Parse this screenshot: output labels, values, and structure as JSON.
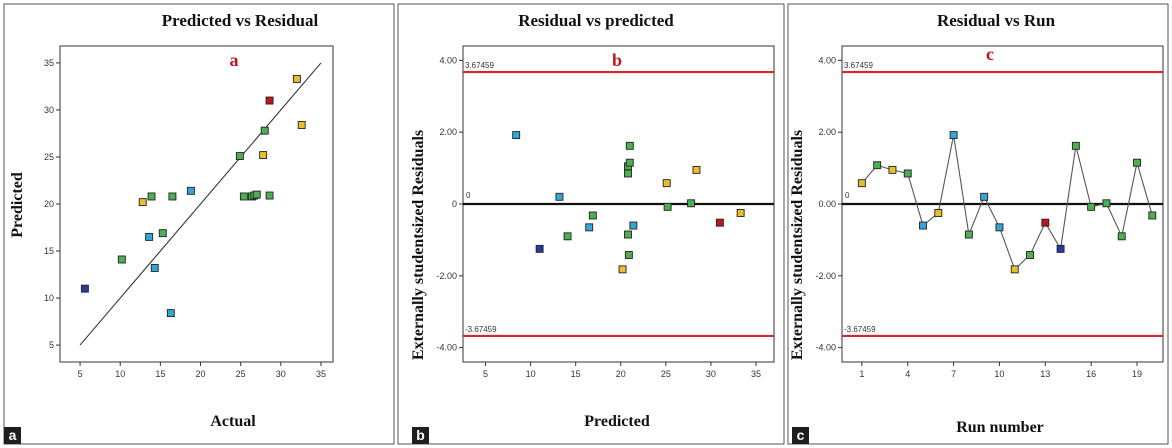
{
  "colors": {
    "green": "#4caf50",
    "yellow": "#e8bd2f",
    "blue": "#33a6d6",
    "navy": "#2b3a9a",
    "red": "#c0161b",
    "limit": "#d9252a",
    "accent_letter": "#c0161b"
  },
  "chart_data": [
    {
      "id": "a",
      "type": "scatter",
      "title": "Predicted vs Residual",
      "xlabel": "Actual",
      "ylabel": "Predicted",
      "panel_letter": "a",
      "badge": "a",
      "xlim": [
        2.5,
        36.5
      ],
      "ylim": [
        3.2,
        36.8
      ],
      "xticks": [
        5,
        10,
        15,
        20,
        25,
        30,
        35
      ],
      "yticks": [
        5,
        10,
        15,
        20,
        25,
        30,
        35
      ],
      "xtick_labels": [
        "5",
        "10",
        "15",
        "20",
        "25",
        "30",
        "35"
      ],
      "ytick_labels": [
        "5",
        "10",
        "15",
        "20",
        "25",
        "30",
        "35"
      ],
      "diagonal": [
        [
          5,
          5
        ],
        [
          35,
          35
        ]
      ],
      "points": [
        {
          "x": 5.6,
          "y": 11.0,
          "c": "navy"
        },
        {
          "x": 10.2,
          "y": 14.1,
          "c": "green"
        },
        {
          "x": 12.8,
          "y": 20.2,
          "c": "yellow"
        },
        {
          "x": 13.6,
          "y": 16.5,
          "c": "blue"
        },
        {
          "x": 13.9,
          "y": 20.8,
          "c": "green"
        },
        {
          "x": 14.3,
          "y": 13.2,
          "c": "blue"
        },
        {
          "x": 15.3,
          "y": 16.9,
          "c": "green"
        },
        {
          "x": 16.3,
          "y": 8.4,
          "c": "blue"
        },
        {
          "x": 16.5,
          "y": 20.8,
          "c": "green"
        },
        {
          "x": 18.8,
          "y": 21.4,
          "c": "blue"
        },
        {
          "x": 24.9,
          "y": 25.1,
          "c": "green"
        },
        {
          "x": 25.4,
          "y": 20.8,
          "c": "green"
        },
        {
          "x": 26.4,
          "y": 20.8,
          "c": "green"
        },
        {
          "x": 26.7,
          "y": 20.9,
          "c": "green"
        },
        {
          "x": 27.0,
          "y": 21.0,
          "c": "green"
        },
        {
          "x": 27.8,
          "y": 25.2,
          "c": "yellow"
        },
        {
          "x": 28.0,
          "y": 27.8,
          "c": "green"
        },
        {
          "x": 28.6,
          "y": 20.9,
          "c": "green"
        },
        {
          "x": 28.6,
          "y": 31.0,
          "c": "red"
        },
        {
          "x": 32.0,
          "y": 33.3,
          "c": "yellow"
        },
        {
          "x": 32.6,
          "y": 28.4,
          "c": "yellow"
        }
      ]
    },
    {
      "id": "b",
      "type": "scatter",
      "title": "Residual vs predicted",
      "xlabel": "Predicted",
      "ylabel": "Externally studentsized Residuals",
      "panel_letter": "b",
      "badge": "b",
      "xlim": [
        2.5,
        37
      ],
      "ylim": [
        -4.4,
        4.4
      ],
      "xticks": [
        5,
        10,
        15,
        20,
        25,
        30,
        35
      ],
      "yticks": [
        4,
        2,
        0,
        -2,
        -4
      ],
      "xtick_labels": [
        "5",
        "10",
        "15",
        "20",
        "25",
        "30",
        "35"
      ],
      "ytick_labels": [
        "4.00",
        "2.00",
        "0",
        "-2.00",
        "-4.00"
      ],
      "upper_limit": 3.67459,
      "lower_limit": -3.67459,
      "upper_label": "3.67459",
      "lower_label": "-3.67459",
      "zero_label": "0",
      "points": [
        {
          "x": 8.4,
          "y": 1.92,
          "c": "blue"
        },
        {
          "x": 11.0,
          "y": -1.25,
          "c": "navy"
        },
        {
          "x": 13.2,
          "y": 0.2,
          "c": "blue"
        },
        {
          "x": 14.1,
          "y": -0.9,
          "c": "green"
        },
        {
          "x": 16.5,
          "y": -0.65,
          "c": "blue"
        },
        {
          "x": 16.9,
          "y": -0.32,
          "c": "green"
        },
        {
          "x": 20.2,
          "y": -1.82,
          "c": "yellow"
        },
        {
          "x": 20.8,
          "y": 1.05,
          "c": "green"
        },
        {
          "x": 20.8,
          "y": 0.85,
          "c": "green"
        },
        {
          "x": 20.8,
          "y": -0.85,
          "c": "green"
        },
        {
          "x": 20.9,
          "y": -1.42,
          "c": "green"
        },
        {
          "x": 21.0,
          "y": 1.62,
          "c": "green"
        },
        {
          "x": 21.0,
          "y": 1.15,
          "c": "green"
        },
        {
          "x": 21.4,
          "y": -0.6,
          "c": "blue"
        },
        {
          "x": 25.1,
          "y": 0.58,
          "c": "yellow"
        },
        {
          "x": 25.2,
          "y": -0.08,
          "c": "green"
        },
        {
          "x": 27.8,
          "y": 0.02,
          "c": "green"
        },
        {
          "x": 28.4,
          "y": 0.95,
          "c": "yellow"
        },
        {
          "x": 31.0,
          "y": -0.52,
          "c": "red"
        },
        {
          "x": 33.3,
          "y": -0.25,
          "c": "yellow"
        }
      ]
    },
    {
      "id": "c",
      "type": "line",
      "title": "Residual vs Run",
      "xlabel": "Run number",
      "ylabel": "Externally studentsized Residuals",
      "panel_letter": "c",
      "badge": "c",
      "xlim": [
        -0.3,
        20.7
      ],
      "ylim": [
        -4.4,
        4.4
      ],
      "xticks": [
        1,
        4,
        7,
        10,
        13,
        16,
        19
      ],
      "yticks": [
        4,
        2,
        0,
        -2,
        -4
      ],
      "xtick_labels": [
        "1",
        "4",
        "7",
        "10",
        "13",
        "16",
        "19"
      ],
      "ytick_labels": [
        "4.00",
        "2.00",
        "0.00",
        "-2.00",
        "-4.00"
      ],
      "upper_limit": 3.67459,
      "lower_limit": -3.67459,
      "upper_label": "3.67459",
      "lower_label": "-3.67459",
      "zero_label": "0",
      "x": [
        1,
        2,
        3,
        4,
        5,
        6,
        7,
        8,
        9,
        10,
        11,
        12,
        13,
        14,
        15,
        16,
        17,
        18,
        19,
        20
      ],
      "y": [
        0.58,
        1.08,
        0.95,
        0.85,
        -0.6,
        -0.25,
        1.92,
        -0.85,
        0.2,
        -0.65,
        -1.82,
        -1.42,
        -0.52,
        -1.25,
        1.62,
        -0.08,
        0.02,
        -0.9,
        1.15,
        -0.32
      ],
      "colors": [
        "yellow",
        "green",
        "yellow",
        "green",
        "blue",
        "yellow",
        "blue",
        "green",
        "blue",
        "blue",
        "yellow",
        "green",
        "red",
        "navy",
        "green",
        "green",
        "green",
        "green",
        "green",
        "green"
      ]
    }
  ]
}
